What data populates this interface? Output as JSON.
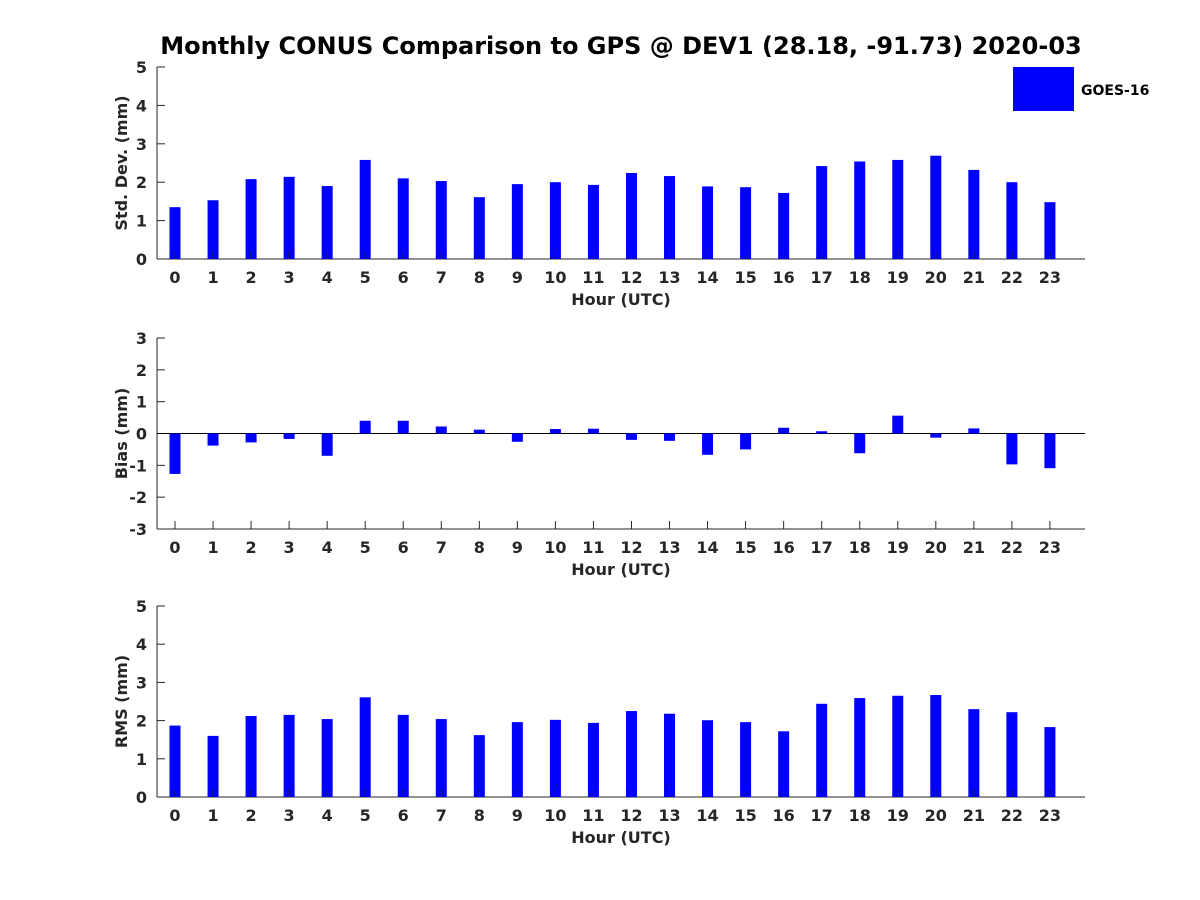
{
  "title": "Monthly CONUS Comparison to GPS @ DEV1 (28.18, -91.73) 2020-03",
  "legend": {
    "label": "GOES-16",
    "color": "#0000ff",
    "placement": "top-right"
  },
  "chart_data": [
    {
      "type": "bar",
      "name": "std-dev",
      "xlabel": "Hour (UTC)",
      "ylabel": "Std. Dev. (mm)",
      "ylim": [
        0,
        5
      ],
      "yticks": [
        "0",
        "1",
        "2",
        "3",
        "4",
        "5"
      ],
      "categories": [
        "0",
        "1",
        "2",
        "3",
        "4",
        "5",
        "6",
        "7",
        "8",
        "9",
        "10",
        "11",
        "12",
        "13",
        "14",
        "15",
        "16",
        "17",
        "18",
        "19",
        "20",
        "21",
        "22",
        "23"
      ],
      "series": [
        {
          "name": "GOES-16",
          "values": [
            1.35,
            1.53,
            2.08,
            2.14,
            1.9,
            2.58,
            2.1,
            2.03,
            1.61,
            1.95,
            2.0,
            1.93,
            2.24,
            2.16,
            1.89,
            1.87,
            1.72,
            2.42,
            2.54,
            2.58,
            2.69,
            2.32,
            2.0,
            1.48
          ]
        }
      ]
    },
    {
      "type": "bar",
      "name": "bias",
      "xlabel": "Hour (UTC)",
      "ylabel": "Bias (mm)",
      "ylim": [
        -3,
        3
      ],
      "yticks": [
        "-3",
        "-2",
        "-1",
        "0",
        "1",
        "2",
        "3"
      ],
      "categories": [
        "0",
        "1",
        "2",
        "3",
        "4",
        "5",
        "6",
        "7",
        "8",
        "9",
        "10",
        "11",
        "12",
        "13",
        "14",
        "15",
        "16",
        "17",
        "18",
        "19",
        "20",
        "21",
        "22",
        "23"
      ],
      "series": [
        {
          "name": "GOES-16",
          "values": [
            -1.27,
            -0.38,
            -0.28,
            -0.17,
            -0.7,
            0.4,
            0.4,
            0.22,
            0.12,
            -0.26,
            0.14,
            0.15,
            -0.2,
            -0.23,
            -0.67,
            -0.5,
            0.18,
            0.07,
            -0.62,
            0.56,
            -0.13,
            0.16,
            -0.97,
            -1.09
          ]
        }
      ]
    },
    {
      "type": "bar",
      "name": "rms",
      "xlabel": "Hour (UTC)",
      "ylabel": "RMS (mm)",
      "ylim": [
        0,
        5
      ],
      "yticks": [
        "0",
        "1",
        "2",
        "3",
        "4",
        "5"
      ],
      "categories": [
        "0",
        "1",
        "2",
        "3",
        "4",
        "5",
        "6",
        "7",
        "8",
        "9",
        "10",
        "11",
        "12",
        "13",
        "14",
        "15",
        "16",
        "17",
        "18",
        "19",
        "20",
        "21",
        "22",
        "23"
      ],
      "series": [
        {
          "name": "GOES-16",
          "values": [
            1.87,
            1.6,
            2.12,
            2.15,
            2.04,
            2.61,
            2.15,
            2.04,
            1.62,
            1.96,
            2.02,
            1.94,
            2.25,
            2.18,
            2.01,
            1.96,
            1.72,
            2.44,
            2.59,
            2.65,
            2.67,
            2.3,
            2.22,
            1.83
          ]
        }
      ]
    }
  ]
}
